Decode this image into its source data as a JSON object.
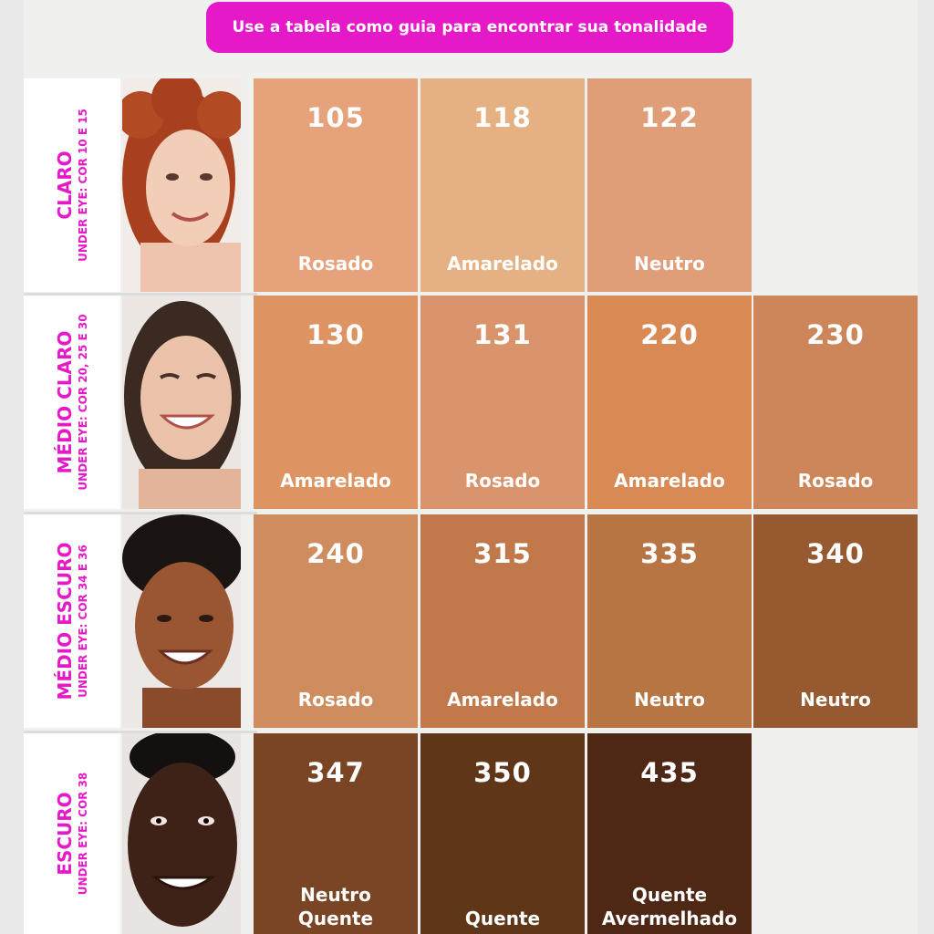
{
  "banner": "Use a tabela como guia para encontrar sua tonalidade",
  "rows": [
    {
      "name": "CLARO",
      "sub": "UNDER EYE: COR 10 E 15",
      "swatches": [
        {
          "code": "105",
          "tone": "Rosado",
          "color": "#e6a27a"
        },
        {
          "code": "118",
          "tone": "Amarelado",
          "color": "#e5b183"
        },
        {
          "code": "122",
          "tone": "Neutro",
          "color": "#df9e78"
        }
      ]
    },
    {
      "name": "MÉDIO CLARO",
      "sub": "UNDER EYE: COR 20, 25 E 30",
      "swatches": [
        {
          "code": "130",
          "tone": "Amarelado",
          "color": "#de9462"
        },
        {
          "code": "131",
          "tone": "Rosado",
          "color": "#d9946c"
        },
        {
          "code": "220",
          "tone": "Amarelado",
          "color": "#d88954"
        },
        {
          "code": "230",
          "tone": "Rosado",
          "color": "#cd855a"
        }
      ]
    },
    {
      "name": "MÉDIO ESCURO",
      "sub": "UNDER EYE: COR 34 E 36",
      "swatches": [
        {
          "code": "240",
          "tone": "Rosado",
          "color": "#cf8c5f"
        },
        {
          "code": "315",
          "tone": "Amarelado",
          "color": "#c1784a"
        },
        {
          "code": "335",
          "tone": "Neutro",
          "color": "#b87544"
        },
        {
          "code": "340",
          "tone": "Neutro",
          "color": "#975a30"
        }
      ]
    },
    {
      "name": "ESCURO",
      "sub": "UNDER EYE: COR 38",
      "swatches": [
        {
          "code": "347",
          "tone": "Neutro\nQuente",
          "color": "#7a4524"
        },
        {
          "code": "350",
          "tone": "Quente",
          "color": "#603619"
        },
        {
          "code": "435",
          "tone": "Quente\nAvermelhado",
          "color": "#4e2815"
        }
      ]
    }
  ],
  "accent": "#e619c8"
}
